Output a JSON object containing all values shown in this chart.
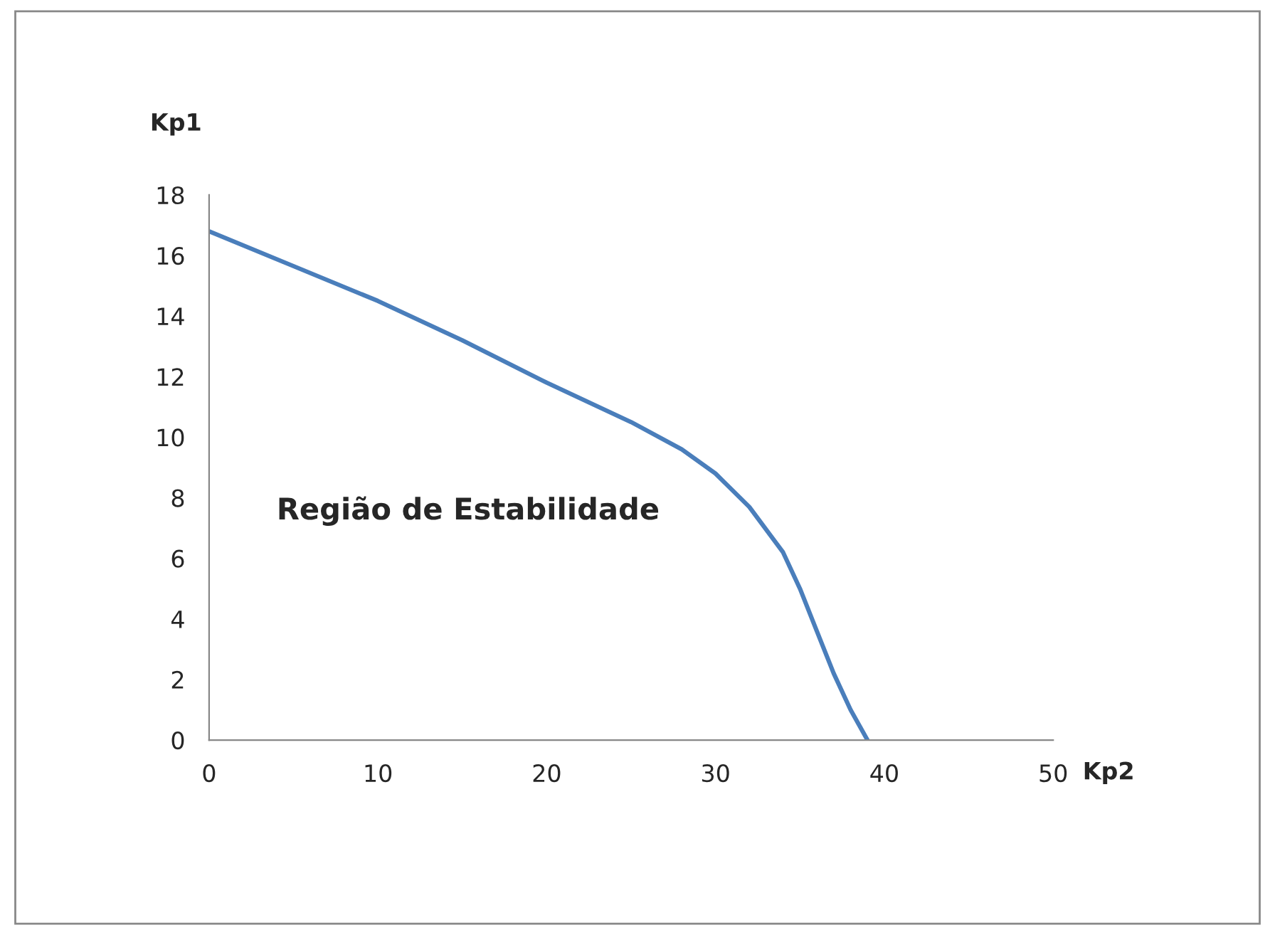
{
  "chart_data": {
    "type": "line",
    "xlabel": "Kp2",
    "ylabel": "Kp1",
    "x": [
      0,
      5,
      10,
      15,
      20,
      25,
      28,
      30,
      32,
      34,
      35,
      36,
      37,
      38,
      39
    ],
    "series": [
      {
        "color": "#4a7ebb",
        "values": [
          16.8,
          15.65,
          14.5,
          13.2,
          11.8,
          10.5,
          9.6,
          8.8,
          7.7,
          6.2,
          5.0,
          3.6,
          2.2,
          1.0,
          0
        ]
      }
    ],
    "xlim": [
      0,
      50
    ],
    "xticks": [
      0,
      10,
      20,
      30,
      40,
      50
    ],
    "ylim": [
      0,
      18
    ],
    "yticks": [
      0,
      2,
      4,
      6,
      8,
      10,
      12,
      14,
      16,
      18
    ],
    "annotations": [
      "Região de Estabilidade"
    ],
    "grid": false,
    "legend": false,
    "marker": "none",
    "line_style": "solid"
  }
}
